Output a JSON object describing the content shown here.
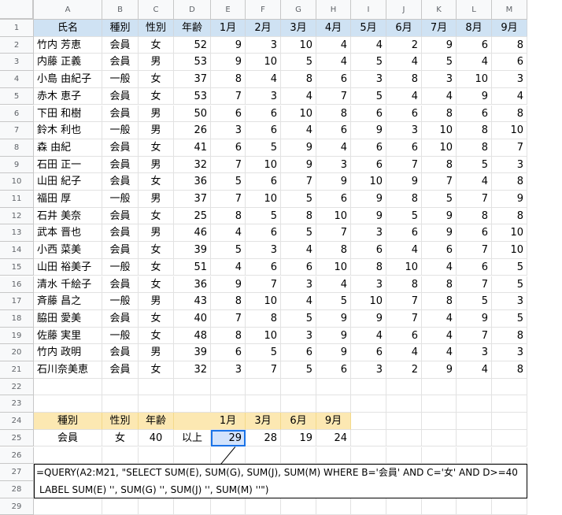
{
  "columns": [
    "A",
    "B",
    "C",
    "D",
    "E",
    "F",
    "G",
    "H",
    "I",
    "J",
    "K",
    "L",
    "M"
  ],
  "table": {
    "headers": [
      "氏名",
      "種別",
      "性別",
      "年齢",
      "1月",
      "2月",
      "3月",
      "4月",
      "5月",
      "6月",
      "7月",
      "8月",
      "9月"
    ],
    "rows": [
      [
        "竹内 芳恵",
        "会員",
        "女",
        "52",
        "9",
        "3",
        "10",
        "4",
        "4",
        "2",
        "9",
        "6",
        "8"
      ],
      [
        "内藤 正義",
        "会員",
        "男",
        "53",
        "9",
        "10",
        "5",
        "4",
        "5",
        "4",
        "5",
        "4",
        "6"
      ],
      [
        "小島 由紀子",
        "一般",
        "女",
        "37",
        "8",
        "4",
        "8",
        "6",
        "3",
        "8",
        "3",
        "10",
        "3"
      ],
      [
        "赤木 恵子",
        "会員",
        "女",
        "53",
        "7",
        "3",
        "4",
        "7",
        "5",
        "4",
        "4",
        "9",
        "4"
      ],
      [
        "下田 和樹",
        "会員",
        "男",
        "50",
        "6",
        "6",
        "10",
        "8",
        "6",
        "6",
        "8",
        "6",
        "8"
      ],
      [
        "鈴木 利也",
        "一般",
        "男",
        "26",
        "3",
        "6",
        "4",
        "6",
        "9",
        "3",
        "10",
        "8",
        "10"
      ],
      [
        "森 由紀",
        "会員",
        "女",
        "41",
        "6",
        "5",
        "9",
        "4",
        "6",
        "6",
        "10",
        "8",
        "7"
      ],
      [
        "石田 正一",
        "会員",
        "男",
        "32",
        "7",
        "10",
        "9",
        "3",
        "6",
        "7",
        "8",
        "5",
        "3"
      ],
      [
        "山田 紀子",
        "会員",
        "女",
        "36",
        "5",
        "6",
        "7",
        "9",
        "10",
        "9",
        "7",
        "4",
        "8"
      ],
      [
        "福田 厚",
        "一般",
        "男",
        "37",
        "7",
        "10",
        "5",
        "6",
        "9",
        "8",
        "5",
        "7",
        "9"
      ],
      [
        "石井 美奈",
        "会員",
        "女",
        "25",
        "8",
        "5",
        "8",
        "10",
        "9",
        "5",
        "9",
        "8",
        "8"
      ],
      [
        "武本 晋也",
        "会員",
        "男",
        "46",
        "4",
        "6",
        "5",
        "7",
        "3",
        "6",
        "9",
        "6",
        "10"
      ],
      [
        "小西 菜美",
        "会員",
        "女",
        "39",
        "5",
        "3",
        "4",
        "8",
        "6",
        "4",
        "6",
        "7",
        "10"
      ],
      [
        "山田 裕美子",
        "一般",
        "女",
        "51",
        "4",
        "6",
        "6",
        "10",
        "8",
        "10",
        "4",
        "6",
        "5"
      ],
      [
        "清水 千絵子",
        "会員",
        "女",
        "36",
        "9",
        "7",
        "3",
        "4",
        "3",
        "8",
        "8",
        "7",
        "5"
      ],
      [
        "斉藤 昌之",
        "一般",
        "男",
        "43",
        "8",
        "10",
        "4",
        "5",
        "10",
        "7",
        "8",
        "5",
        "3"
      ],
      [
        "脇田 愛美",
        "会員",
        "女",
        "40",
        "7",
        "8",
        "5",
        "9",
        "9",
        "7",
        "4",
        "9",
        "5"
      ],
      [
        "佐藤 実里",
        "一般",
        "女",
        "48",
        "8",
        "10",
        "3",
        "9",
        "4",
        "6",
        "4",
        "7",
        "8"
      ],
      [
        "竹内 政明",
        "会員",
        "男",
        "39",
        "6",
        "5",
        "6",
        "9",
        "6",
        "4",
        "4",
        "3",
        "3"
      ],
      [
        "石川奈美恵",
        "会員",
        "女",
        "32",
        "3",
        "7",
        "5",
        "6",
        "3",
        "2",
        "9",
        "4",
        "8"
      ]
    ]
  },
  "criteria": {
    "headers": [
      "種別",
      "性別",
      "年齢"
    ],
    "values": [
      "会員",
      "女",
      "40"
    ],
    "suffix": "以上"
  },
  "result": {
    "headers": [
      "1月",
      "3月",
      "6月",
      "9月"
    ],
    "values": [
      "29",
      "28",
      "19",
      "24"
    ]
  },
  "formula": {
    "line1": "=QUERY(A2:M21, \"SELECT SUM(E), SUM(G), SUM(J), SUM(M) WHERE B='会員' AND C='女' AND D>=40",
    "line2": "LABEL SUM(E) '', SUM(G) '', SUM(J) '', SUM(M) ''\")"
  },
  "colors": {
    "table_header_fill": "#cfe2f3",
    "criteria_header_fill": "#fce8b2",
    "selected_cell_fill": "#d2e3fc"
  }
}
